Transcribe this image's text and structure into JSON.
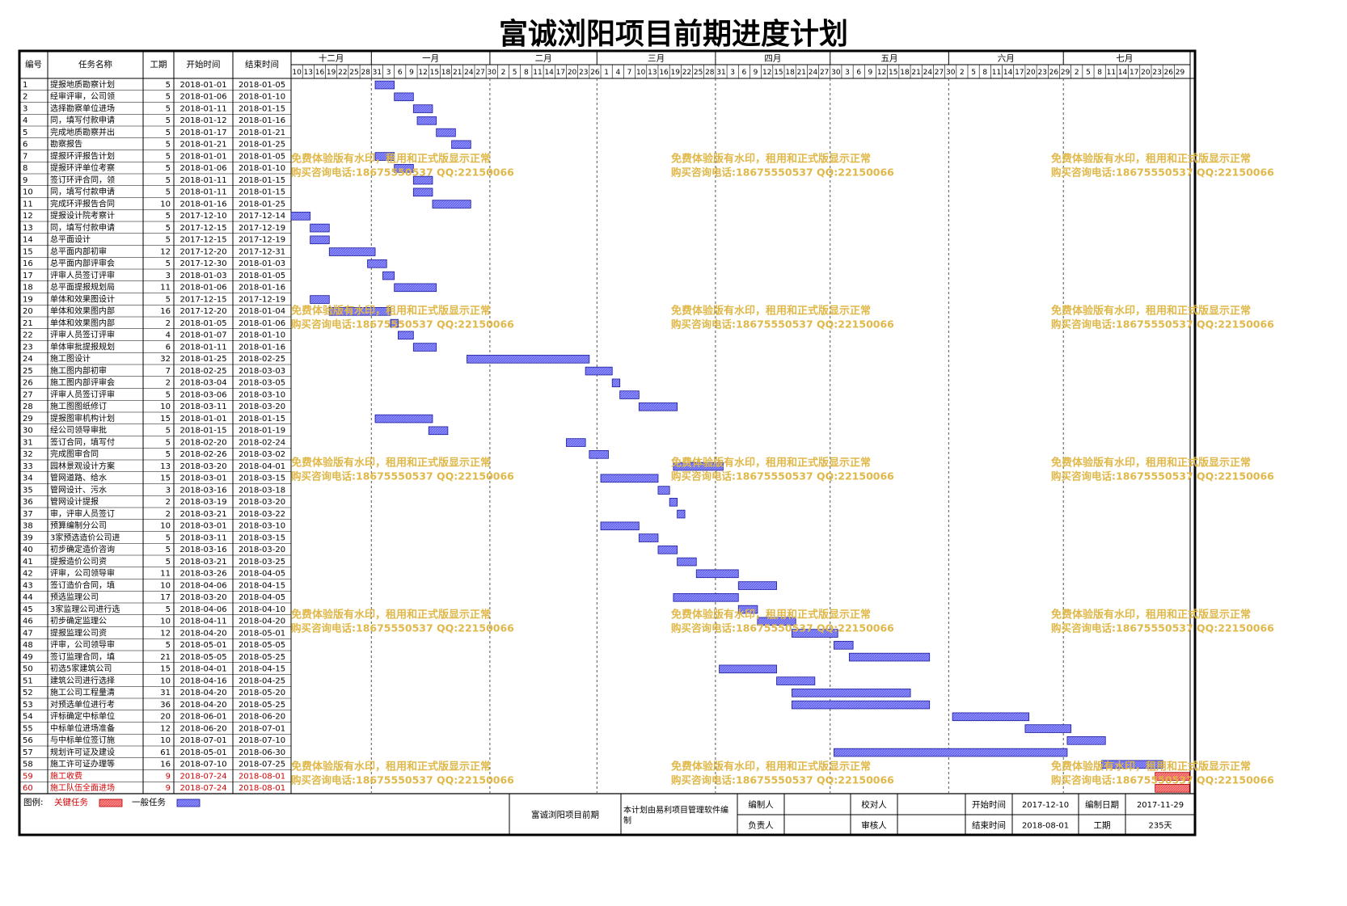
{
  "title": "富诚浏阳项目前期进度计划",
  "columns": {
    "no": "编号",
    "name": "任务名称",
    "duration": "工期",
    "start": "开始时间",
    "end": "结束时间"
  },
  "timeline": {
    "months": [
      "十二月",
      "一月",
      "二月",
      "三月",
      "四月",
      "五月",
      "六月",
      "七月"
    ],
    "day_ticks": [
      {
        "date": "2017-12-10",
        "label": "10"
      },
      {
        "date": "2017-12-13",
        "label": "13"
      },
      {
        "date": "2017-12-16",
        "label": "16"
      },
      {
        "date": "2017-12-19",
        "label": "19"
      },
      {
        "date": "2017-12-22",
        "label": "22"
      },
      {
        "date": "2017-12-25",
        "label": "25"
      },
      {
        "date": "2017-12-28",
        "label": "28"
      },
      {
        "date": "2017-12-31",
        "label": "31"
      },
      {
        "date": "2018-01-03",
        "label": "3"
      },
      {
        "date": "2018-01-06",
        "label": "6"
      },
      {
        "date": "2018-01-09",
        "label": "9"
      },
      {
        "date": "2018-01-12",
        "label": "12"
      },
      {
        "date": "2018-01-15",
        "label": "15"
      },
      {
        "date": "2018-01-18",
        "label": "18"
      },
      {
        "date": "2018-01-21",
        "label": "21"
      },
      {
        "date": "2018-01-24",
        "label": "24"
      },
      {
        "date": "2018-01-27",
        "label": "27"
      },
      {
        "date": "2018-01-30",
        "label": "30"
      },
      {
        "date": "2018-02-02",
        "label": "2"
      },
      {
        "date": "2018-02-05",
        "label": "5"
      },
      {
        "date": "2018-02-08",
        "label": "8"
      },
      {
        "date": "2018-02-11",
        "label": "11"
      },
      {
        "date": "2018-02-14",
        "label": "14"
      },
      {
        "date": "2018-02-17",
        "label": "17"
      },
      {
        "date": "2018-02-20",
        "label": "20"
      },
      {
        "date": "2018-02-23",
        "label": "23"
      },
      {
        "date": "2018-02-26",
        "label": "26"
      },
      {
        "date": "2018-03-01",
        "label": "1"
      },
      {
        "date": "2018-03-04",
        "label": "4"
      },
      {
        "date": "2018-03-07",
        "label": "7"
      },
      {
        "date": "2018-03-10",
        "label": "10"
      },
      {
        "date": "2018-03-13",
        "label": "13"
      },
      {
        "date": "2018-03-16",
        "label": "16"
      },
      {
        "date": "2018-03-19",
        "label": "19"
      },
      {
        "date": "2018-03-22",
        "label": "22"
      },
      {
        "date": "2018-03-25",
        "label": "25"
      },
      {
        "date": "2018-03-28",
        "label": "28"
      },
      {
        "date": "2018-03-31",
        "label": "31"
      },
      {
        "date": "2018-04-03",
        "label": "3"
      },
      {
        "date": "2018-04-06",
        "label": "6"
      },
      {
        "date": "2018-04-09",
        "label": "9"
      },
      {
        "date": "2018-04-12",
        "label": "12"
      },
      {
        "date": "2018-04-15",
        "label": "15"
      },
      {
        "date": "2018-04-18",
        "label": "18"
      },
      {
        "date": "2018-04-21",
        "label": "21"
      },
      {
        "date": "2018-04-24",
        "label": "24"
      },
      {
        "date": "2018-04-27",
        "label": "27"
      },
      {
        "date": "2018-04-30",
        "label": "30"
      },
      {
        "date": "2018-05-03",
        "label": "3"
      },
      {
        "date": "2018-05-06",
        "label": "6"
      },
      {
        "date": "2018-05-09",
        "label": "9"
      },
      {
        "date": "2018-05-12",
        "label": "12"
      },
      {
        "date": "2018-05-15",
        "label": "15"
      },
      {
        "date": "2018-05-18",
        "label": "18"
      },
      {
        "date": "2018-05-21",
        "label": "21"
      },
      {
        "date": "2018-05-24",
        "label": "24"
      },
      {
        "date": "2018-05-27",
        "label": "27"
      },
      {
        "date": "2018-05-30",
        "label": "30"
      },
      {
        "date": "2018-06-02",
        "label": "2"
      },
      {
        "date": "2018-06-05",
        "label": "5"
      },
      {
        "date": "2018-06-08",
        "label": "8"
      },
      {
        "date": "2018-06-11",
        "label": "11"
      },
      {
        "date": "2018-06-14",
        "label": "14"
      },
      {
        "date": "2018-06-17",
        "label": "17"
      },
      {
        "date": "2018-06-20",
        "label": "20"
      },
      {
        "date": "2018-06-23",
        "label": "23"
      },
      {
        "date": "2018-06-26",
        "label": "26"
      },
      {
        "date": "2018-06-29",
        "label": "29"
      },
      {
        "date": "2018-07-02",
        "label": "2"
      },
      {
        "date": "2018-07-05",
        "label": "5"
      },
      {
        "date": "2018-07-08",
        "label": "8"
      },
      {
        "date": "2018-07-11",
        "label": "11"
      },
      {
        "date": "2018-07-14",
        "label": "14"
      },
      {
        "date": "2018-07-17",
        "label": "17"
      },
      {
        "date": "2018-07-20",
        "label": "20"
      },
      {
        "date": "2018-07-23",
        "label": "23"
      },
      {
        "date": "2018-07-26",
        "label": "26"
      },
      {
        "date": "2018-07-29",
        "label": "29"
      }
    ]
  },
  "chart_data": {
    "type": "gantt",
    "title": "富诚浏阳项目前期进度计划",
    "x_range": [
      "2017-12-10",
      "2018-08-01"
    ],
    "tasks": [
      {
        "id": "1",
        "name": "提报地质勘察计划",
        "duration": 5,
        "start": "2018-01-01",
        "end": "2018-01-05",
        "critical": false
      },
      {
        "id": "2",
        "name": "经审评审，公司领",
        "duration": 5,
        "start": "2018-01-06",
        "end": "2018-01-10",
        "critical": false
      },
      {
        "id": "3",
        "name": "选择勘察单位进场",
        "duration": 5,
        "start": "2018-01-11",
        "end": "2018-01-15",
        "critical": false
      },
      {
        "id": "4",
        "name": "同，填写付款申请",
        "duration": 5,
        "start": "2018-01-12",
        "end": "2018-01-16",
        "critical": false
      },
      {
        "id": "5",
        "name": "完成地质勘察并出",
        "duration": 5,
        "start": "2018-01-17",
        "end": "2018-01-21",
        "critical": false
      },
      {
        "id": "6",
        "name": "勘察报告",
        "duration": 5,
        "start": "2018-01-21",
        "end": "2018-01-25",
        "critical": false
      },
      {
        "id": "7",
        "name": "提报环评报告计划",
        "duration": 5,
        "start": "2018-01-01",
        "end": "2018-01-05",
        "critical": false
      },
      {
        "id": "8",
        "name": "提报环评单位考察",
        "duration": 5,
        "start": "2018-01-06",
        "end": "2018-01-10",
        "critical": false
      },
      {
        "id": "9",
        "name": "签订环评合同，领",
        "duration": 5,
        "start": "2018-01-11",
        "end": "2018-01-15",
        "critical": false
      },
      {
        "id": "10",
        "name": "同，填写付款申请",
        "duration": 5,
        "start": "2018-01-11",
        "end": "2018-01-15",
        "critical": false
      },
      {
        "id": "11",
        "name": "完成环评报告合同",
        "duration": 10,
        "start": "2018-01-16",
        "end": "2018-01-25",
        "critical": false
      },
      {
        "id": "12",
        "name": "提报设计院考察计",
        "duration": 5,
        "start": "2017-12-10",
        "end": "2017-12-14",
        "critical": false
      },
      {
        "id": "13",
        "name": "同，填写付款申请",
        "duration": 5,
        "start": "2017-12-15",
        "end": "2017-12-19",
        "critical": false
      },
      {
        "id": "14",
        "name": "总平面设计",
        "duration": 5,
        "start": "2017-12-15",
        "end": "2017-12-19",
        "critical": false
      },
      {
        "id": "15",
        "name": "总平面内部初审",
        "duration": 12,
        "start": "2017-12-20",
        "end": "2017-12-31",
        "critical": false
      },
      {
        "id": "16",
        "name": "总平面内部评审会",
        "duration": 5,
        "start": "2017-12-30",
        "end": "2018-01-03",
        "critical": false
      },
      {
        "id": "17",
        "name": "评审人员签订评审",
        "duration": 3,
        "start": "2018-01-03",
        "end": "2018-01-05",
        "critical": false
      },
      {
        "id": "18",
        "name": "总平面提报规划局",
        "duration": 11,
        "start": "2018-01-06",
        "end": "2018-01-16",
        "critical": false
      },
      {
        "id": "19",
        "name": "单体和效果图设计",
        "duration": 5,
        "start": "2017-12-15",
        "end": "2017-12-19",
        "critical": false
      },
      {
        "id": "20",
        "name": "单体和效果图内部",
        "duration": 16,
        "start": "2017-12-20",
        "end": "2018-01-04",
        "critical": false
      },
      {
        "id": "21",
        "name": "单体和效果图内部",
        "duration": 2,
        "start": "2018-01-05",
        "end": "2018-01-06",
        "critical": false
      },
      {
        "id": "22",
        "name": "评审人员签订评审",
        "duration": 4,
        "start": "2018-01-07",
        "end": "2018-01-10",
        "critical": false
      },
      {
        "id": "23",
        "name": "单体审批提报规划",
        "duration": 6,
        "start": "2018-01-11",
        "end": "2018-01-16",
        "critical": false
      },
      {
        "id": "24",
        "name": "施工图设计",
        "duration": 32,
        "start": "2018-01-25",
        "end": "2018-02-25",
        "critical": false
      },
      {
        "id": "25",
        "name": "施工图内部初审",
        "duration": 7,
        "start": "2018-02-25",
        "end": "2018-03-03",
        "critical": false
      },
      {
        "id": "26",
        "name": "施工图内部评审会",
        "duration": 2,
        "start": "2018-03-04",
        "end": "2018-03-05",
        "critical": false
      },
      {
        "id": "27",
        "name": "评审人员签订评审",
        "duration": 5,
        "start": "2018-03-06",
        "end": "2018-03-10",
        "critical": false
      },
      {
        "id": "28",
        "name": "施工图图纸修订",
        "duration": 10,
        "start": "2018-03-11",
        "end": "2018-03-20",
        "critical": false
      },
      {
        "id": "29",
        "name": "提报图审机构计划",
        "duration": 15,
        "start": "2018-01-01",
        "end": "2018-01-15",
        "critical": false
      },
      {
        "id": "30",
        "name": "经公司领导审批",
        "duration": 5,
        "start": "2018-01-15",
        "end": "2018-01-19",
        "critical": false
      },
      {
        "id": "31",
        "name": "签订合同，填写付",
        "duration": 5,
        "start": "2018-02-20",
        "end": "2018-02-24",
        "critical": false
      },
      {
        "id": "32",
        "name": "完成图审合同",
        "duration": 5,
        "start": "2018-02-26",
        "end": "2018-03-02",
        "critical": false
      },
      {
        "id": "33",
        "name": "园林景观设计方案",
        "duration": 13,
        "start": "2018-03-20",
        "end": "2018-04-01",
        "critical": false
      },
      {
        "id": "34",
        "name": "管网道路、给水",
        "duration": 15,
        "start": "2018-03-01",
        "end": "2018-03-15",
        "critical": false
      },
      {
        "id": "35",
        "name": "管网设计、污水",
        "duration": 3,
        "start": "2018-03-16",
        "end": "2018-03-18",
        "critical": false
      },
      {
        "id": "36",
        "name": "管网设计提报",
        "duration": 2,
        "start": "2018-03-19",
        "end": "2018-03-20",
        "critical": false
      },
      {
        "id": "37",
        "name": "审，评审人员签订",
        "duration": 2,
        "start": "2018-03-21",
        "end": "2018-03-22",
        "critical": false
      },
      {
        "id": "38",
        "name": "预算编制分公司",
        "duration": 10,
        "start": "2018-03-01",
        "end": "2018-03-10",
        "critical": false
      },
      {
        "id": "39",
        "name": "3家预选造价公司进",
        "duration": 5,
        "start": "2018-03-11",
        "end": "2018-03-15",
        "critical": false
      },
      {
        "id": "40",
        "name": "初步确定造价咨询",
        "duration": 5,
        "start": "2018-03-16",
        "end": "2018-03-20",
        "critical": false
      },
      {
        "id": "41",
        "name": "提报造价公司资",
        "duration": 5,
        "start": "2018-03-21",
        "end": "2018-03-25",
        "critical": false
      },
      {
        "id": "42",
        "name": "评审，公司领导审",
        "duration": 11,
        "start": "2018-03-26",
        "end": "2018-04-05",
        "critical": false
      },
      {
        "id": "43",
        "name": "签订造价合同，填",
        "duration": 10,
        "start": "2018-04-06",
        "end": "2018-04-15",
        "critical": false
      },
      {
        "id": "44",
        "name": "预选监理公司",
        "duration": 17,
        "start": "2018-03-20",
        "end": "2018-04-05",
        "critical": false
      },
      {
        "id": "45",
        "name": "3家监理公司进行选",
        "duration": 5,
        "start": "2018-04-06",
        "end": "2018-04-10",
        "critical": false
      },
      {
        "id": "46",
        "name": "初步确定监理公",
        "duration": 10,
        "start": "2018-04-11",
        "end": "2018-04-20",
        "critical": false
      },
      {
        "id": "47",
        "name": "提报监理公司资",
        "duration": 12,
        "start": "2018-04-20",
        "end": "2018-05-01",
        "critical": false
      },
      {
        "id": "48",
        "name": "评审，公司领导审",
        "duration": 5,
        "start": "2018-05-01",
        "end": "2018-05-05",
        "critical": false
      },
      {
        "id": "49",
        "name": "签订监理合同，填",
        "duration": 21,
        "start": "2018-05-05",
        "end": "2018-05-25",
        "critical": false
      },
      {
        "id": "50",
        "name": "初选5家建筑公司",
        "duration": 15,
        "start": "2018-04-01",
        "end": "2018-04-15",
        "critical": false
      },
      {
        "id": "51",
        "name": "建筑公司进行选择",
        "duration": 10,
        "start": "2018-04-16",
        "end": "2018-04-25",
        "critical": false
      },
      {
        "id": "52",
        "name": "施工公司工程量清",
        "duration": 31,
        "start": "2018-04-20",
        "end": "2018-05-20",
        "critical": false
      },
      {
        "id": "53",
        "name": "对预选单位进行考",
        "duration": 36,
        "start": "2018-04-20",
        "end": "2018-05-25",
        "critical": false
      },
      {
        "id": "54",
        "name": "评标确定中标单位",
        "duration": 20,
        "start": "2018-06-01",
        "end": "2018-06-20",
        "critical": false
      },
      {
        "id": "55",
        "name": "中标单位进场准备",
        "duration": 12,
        "start": "2018-06-20",
        "end": "2018-07-01",
        "critical": false
      },
      {
        "id": "56",
        "name": "与中标单位签订施",
        "duration": 10,
        "start": "2018-07-01",
        "end": "2018-07-10",
        "critical": false
      },
      {
        "id": "57",
        "name": "规划许可证及建设",
        "duration": 61,
        "start": "2018-05-01",
        "end": "2018-06-30",
        "critical": false
      },
      {
        "id": "58",
        "name": "施工许可证办理等",
        "duration": 16,
        "start": "2018-07-10",
        "end": "2018-07-25",
        "critical": false
      },
      {
        "id": "59",
        "name": "施工收费",
        "duration": 9,
        "start": "2018-07-24",
        "end": "2018-08-01",
        "critical": true
      },
      {
        "id": "60",
        "name": "施工队伍全面进场",
        "duration": 9,
        "start": "2018-07-24",
        "end": "2018-08-01",
        "critical": true
      }
    ]
  },
  "watermark": {
    "line1": "免费体验版有水印，租用和正式版显示正常",
    "line2": "购买咨询电话:18675550537 QQ:22150066"
  },
  "legend": {
    "label": "图例:",
    "critical": "关键任务",
    "normal": "一般任务"
  },
  "footer": {
    "project": "富诚浏阳项目前期",
    "software_note": "本计划由易利项目管理软件编制",
    "editor_label": "编制人",
    "owner_label": "负责人",
    "checker_label": "校对人",
    "reviewer_label": "审核人",
    "start_label": "开始时间",
    "start_value": "2017-12-10",
    "end_label": "结束时间",
    "end_value": "2018-08-01",
    "date_label": "编制日期",
    "date_value": "2017-11-29",
    "duration_label": "工期",
    "duration_value": "235天"
  },
  "colors": {
    "normal_bar": "#6868ee",
    "normal_bar_stroke": "#1a1a9a",
    "critical_bar": "#ee5a5a",
    "critical_text": "#d40000",
    "watermark": "#e0b84a",
    "month_line": "#555555"
  }
}
